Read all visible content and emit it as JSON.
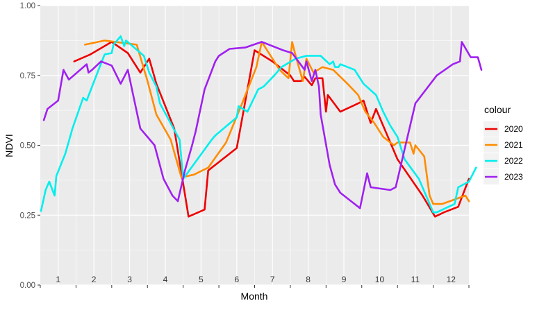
{
  "chart_data": {
    "type": "line",
    "title": "",
    "xlabel": "Month",
    "ylabel": "NDVI",
    "xlim": [
      0.5,
      12.5
    ],
    "ylim": [
      0,
      1
    ],
    "grid": true,
    "x_ticks": [
      1,
      2,
      3,
      4,
      5,
      6,
      7,
      8,
      9,
      10,
      11,
      12
    ],
    "x_tick_labels": [
      "1",
      "2",
      "3",
      "4",
      "5",
      "6",
      "7",
      "8",
      "9",
      "10",
      "11",
      "12"
    ],
    "y_ticks": [
      0,
      0.25,
      0.5,
      0.75,
      1
    ],
    "y_tick_labels": [
      "0.00",
      "0.25",
      "0.50",
      "0.75",
      "1.00"
    ],
    "legend": {
      "title": "colour",
      "position": "right"
    },
    "series": [
      {
        "name": "2020",
        "color": "#ee0000",
        "x": [
          1.45,
          1.9,
          2.5,
          2.95,
          3.3,
          3.55,
          3.75,
          4.25,
          4.65,
          5.1,
          5.2,
          6,
          6.5,
          7,
          7.5,
          7.6,
          7.8,
          7.9,
          8.1,
          8.2,
          8.4,
          8.5,
          8.55,
          8.9,
          9.4,
          9.55,
          9.75,
          9.9,
          10.5,
          11.2,
          11.55,
          11.8,
          12.2,
          12.5
        ],
        "y": [
          0.8,
          0.825,
          0.87,
          0.83,
          0.76,
          0.81,
          0.72,
          0.56,
          0.245,
          0.27,
          0.41,
          0.49,
          0.84,
          0.8,
          0.75,
          0.73,
          0.73,
          0.745,
          0.715,
          0.74,
          0.74,
          0.62,
          0.68,
          0.62,
          0.65,
          0.66,
          0.58,
          0.63,
          0.45,
          0.32,
          0.245,
          0.26,
          0.28,
          0.38
        ]
      },
      {
        "name": "2021",
        "color": "#ff8c00",
        "x": [
          1.75,
          2.3,
          2.6,
          3.2,
          3.5,
          3.75,
          4.15,
          4.45,
          4.8,
          5.2,
          5.7,
          6.15,
          6.55,
          6.7,
          7.2,
          7.45,
          7.55,
          7.65,
          7.85,
          7.95,
          8.15,
          8.4,
          8.7,
          9.1,
          9.4,
          9.6,
          9.85,
          10.1,
          10.3,
          10.4,
          10.5,
          10.7,
          10.85,
          10.95,
          11,
          11.25,
          11.4,
          11.5,
          11.75,
          12.4,
          12.5
        ],
        "y": [
          0.86,
          0.875,
          0.87,
          0.86,
          0.73,
          0.61,
          0.52,
          0.385,
          0.395,
          0.42,
          0.51,
          0.65,
          0.78,
          0.87,
          0.77,
          0.74,
          0.87,
          0.82,
          0.73,
          0.81,
          0.76,
          0.78,
          0.77,
          0.72,
          0.68,
          0.62,
          0.58,
          0.53,
          0.51,
          0.5,
          0.51,
          0.51,
          0.51,
          0.47,
          0.5,
          0.46,
          0.32,
          0.29,
          0.29,
          0.32,
          0.3
        ]
      },
      {
        "name": "2022",
        "color": "#00eeee",
        "x": [
          0.52,
          0.65,
          0.75,
          0.9,
          0.95,
          1.2,
          1.4,
          1.7,
          1.8,
          2.1,
          2.3,
          2.5,
          2.55,
          2.75,
          2.85,
          2.9,
          3.4,
          3.55,
          3.75,
          3.85,
          4.4,
          4.5,
          5.3,
          5.4,
          6,
          6.05,
          6.3,
          6.6,
          6.75,
          7.05,
          7.25,
          7.65,
          7.95,
          8.35,
          8.6,
          8.7,
          8.75,
          8.85,
          8.9,
          9.3,
          9.55,
          9.9,
          10.1,
          10.3,
          10.5,
          10.7,
          11.1,
          11.5,
          11.6,
          12.1,
          12.2,
          12.5,
          12.7
        ],
        "y": [
          0.265,
          0.34,
          0.37,
          0.32,
          0.39,
          0.47,
          0.56,
          0.67,
          0.66,
          0.76,
          0.825,
          0.83,
          0.86,
          0.89,
          0.855,
          0.875,
          0.82,
          0.76,
          0.71,
          0.65,
          0.52,
          0.38,
          0.52,
          0.535,
          0.6,
          0.64,
          0.62,
          0.7,
          0.71,
          0.75,
          0.78,
          0.81,
          0.82,
          0.82,
          0.79,
          0.8,
          0.78,
          0.78,
          0.79,
          0.77,
          0.72,
          0.68,
          0.62,
          0.57,
          0.53,
          0.45,
          0.38,
          0.26,
          0.26,
          0.29,
          0.35,
          0.37,
          0.42
        ]
      },
      {
        "name": "2023",
        "color": "#a020f0",
        "x": [
          0.6,
          0.7,
          1,
          1.15,
          1.3,
          1.8,
          1.85,
          1.95,
          2.2,
          2.5,
          2.75,
          2.95,
          3.1,
          3.3,
          3.5,
          3.7,
          3.95,
          4.2,
          4.35,
          4.55,
          4.75,
          4.85,
          5.1,
          5.4,
          5.5,
          5.8,
          6.25,
          6.7,
          6.9,
          7.3,
          7.55,
          7.9,
          7.95,
          8.1,
          8.2,
          8.3,
          8.35,
          8.6,
          8.75,
          8.9,
          9.45,
          9.65,
          9.75,
          10.3,
          10.45,
          11,
          11.6,
          12.05,
          12.25,
          12.3,
          12.55,
          12.75,
          12.85
        ],
        "y": [
          0.59,
          0.63,
          0.66,
          0.77,
          0.735,
          0.79,
          0.76,
          0.77,
          0.8,
          0.785,
          0.72,
          0.77,
          0.68,
          0.56,
          0.53,
          0.5,
          0.38,
          0.32,
          0.3,
          0.41,
          0.5,
          0.55,
          0.7,
          0.8,
          0.82,
          0.845,
          0.85,
          0.87,
          0.86,
          0.84,
          0.83,
          0.77,
          0.8,
          0.73,
          0.77,
          0.71,
          0.61,
          0.43,
          0.36,
          0.33,
          0.275,
          0.4,
          0.35,
          0.34,
          0.35,
          0.65,
          0.75,
          0.79,
          0.8,
          0.87,
          0.815,
          0.815,
          0.77
        ]
      }
    ]
  }
}
